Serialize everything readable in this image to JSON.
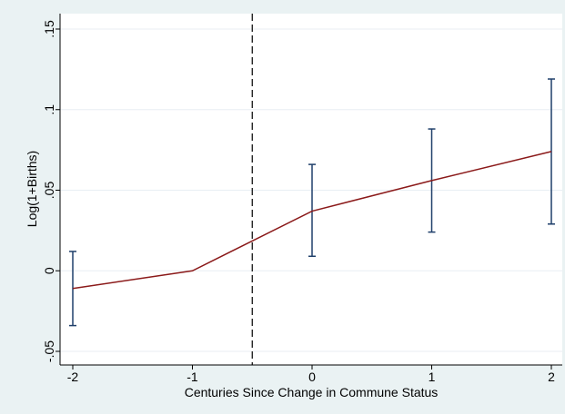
{
  "chart_data": {
    "type": "line",
    "title": "",
    "xlabel": "Centuries Since Change in Commune Status",
    "ylabel": "Log(1+Births)",
    "xlim": [
      -2,
      2
    ],
    "ylim": [
      -0.05,
      0.15
    ],
    "x_ticks": [
      -2,
      -1,
      0,
      1,
      2
    ],
    "x_tick_labels": [
      "-2",
      "-1",
      "0",
      "1",
      "2"
    ],
    "y_ticks": [
      -0.05,
      0,
      0.05,
      0.1,
      0.15
    ],
    "y_tick_labels": [
      "-.05",
      "0",
      ".05",
      ".1",
      ".15"
    ],
    "grid": true,
    "series": [
      {
        "x": [
          -2,
          -1,
          0,
          1,
          2
        ],
        "y": [
          -0.011,
          0.0,
          0.037,
          0.056,
          0.074
        ],
        "ci_low": [
          -0.034,
          null,
          0.009,
          0.024,
          0.029
        ],
        "ci_high": [
          0.012,
          null,
          0.066,
          0.088,
          0.119
        ]
      }
    ],
    "reference_line_x": -0.5,
    "colors": {
      "line": "#8b1a1a",
      "error_bars": "#1f3f6a",
      "reference_line": "#000000",
      "gridlines": "#e8eef3",
      "outer_background": "#eaf2f3",
      "plot_background": "#ffffff"
    }
  }
}
